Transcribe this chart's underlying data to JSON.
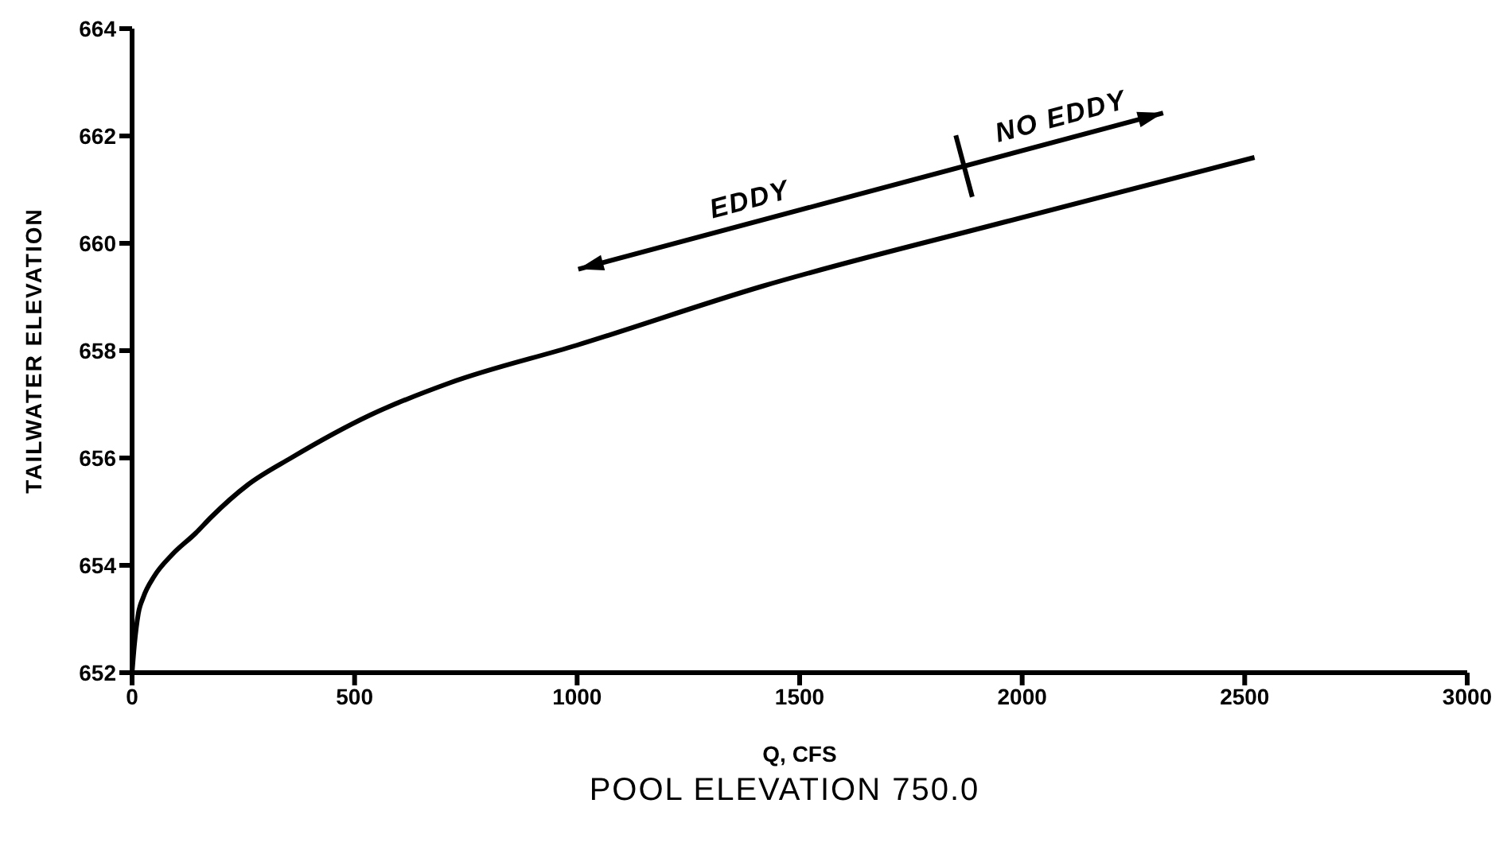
{
  "chart_data": {
    "type": "line",
    "title": "POOL ELEVATION 750.0",
    "xlabel": "Q, CFS",
    "ylabel": "TAILWATER ELEVATION",
    "x": [
      0,
      5,
      14,
      25,
      50,
      90,
      143,
      178,
      260,
      357,
      535,
      714,
      999,
      1416,
      1962,
      2522
    ],
    "series": [
      {
        "color": "#000000",
        "values": [
          652,
          652.5,
          653.1,
          653.4,
          653.8,
          654.2,
          654.6,
          654.9,
          655.5,
          656.0,
          656.8,
          657.4,
          658.1,
          659.2,
          660.4,
          661.6
        ]
      }
    ],
    "xlim": [
      0,
      3000
    ],
    "xticks": [
      0,
      500,
      1000,
      1500,
      2000,
      2500,
      3000
    ],
    "ylim": [
      652,
      664
    ],
    "yticks": [
      652,
      654,
      656,
      658,
      660,
      662,
      664
    ],
    "grid": false,
    "legend": false,
    "marker": "none",
    "line_style": "solid",
    "annotations": [
      "EDDY",
      "NO EDDY"
    ]
  }
}
